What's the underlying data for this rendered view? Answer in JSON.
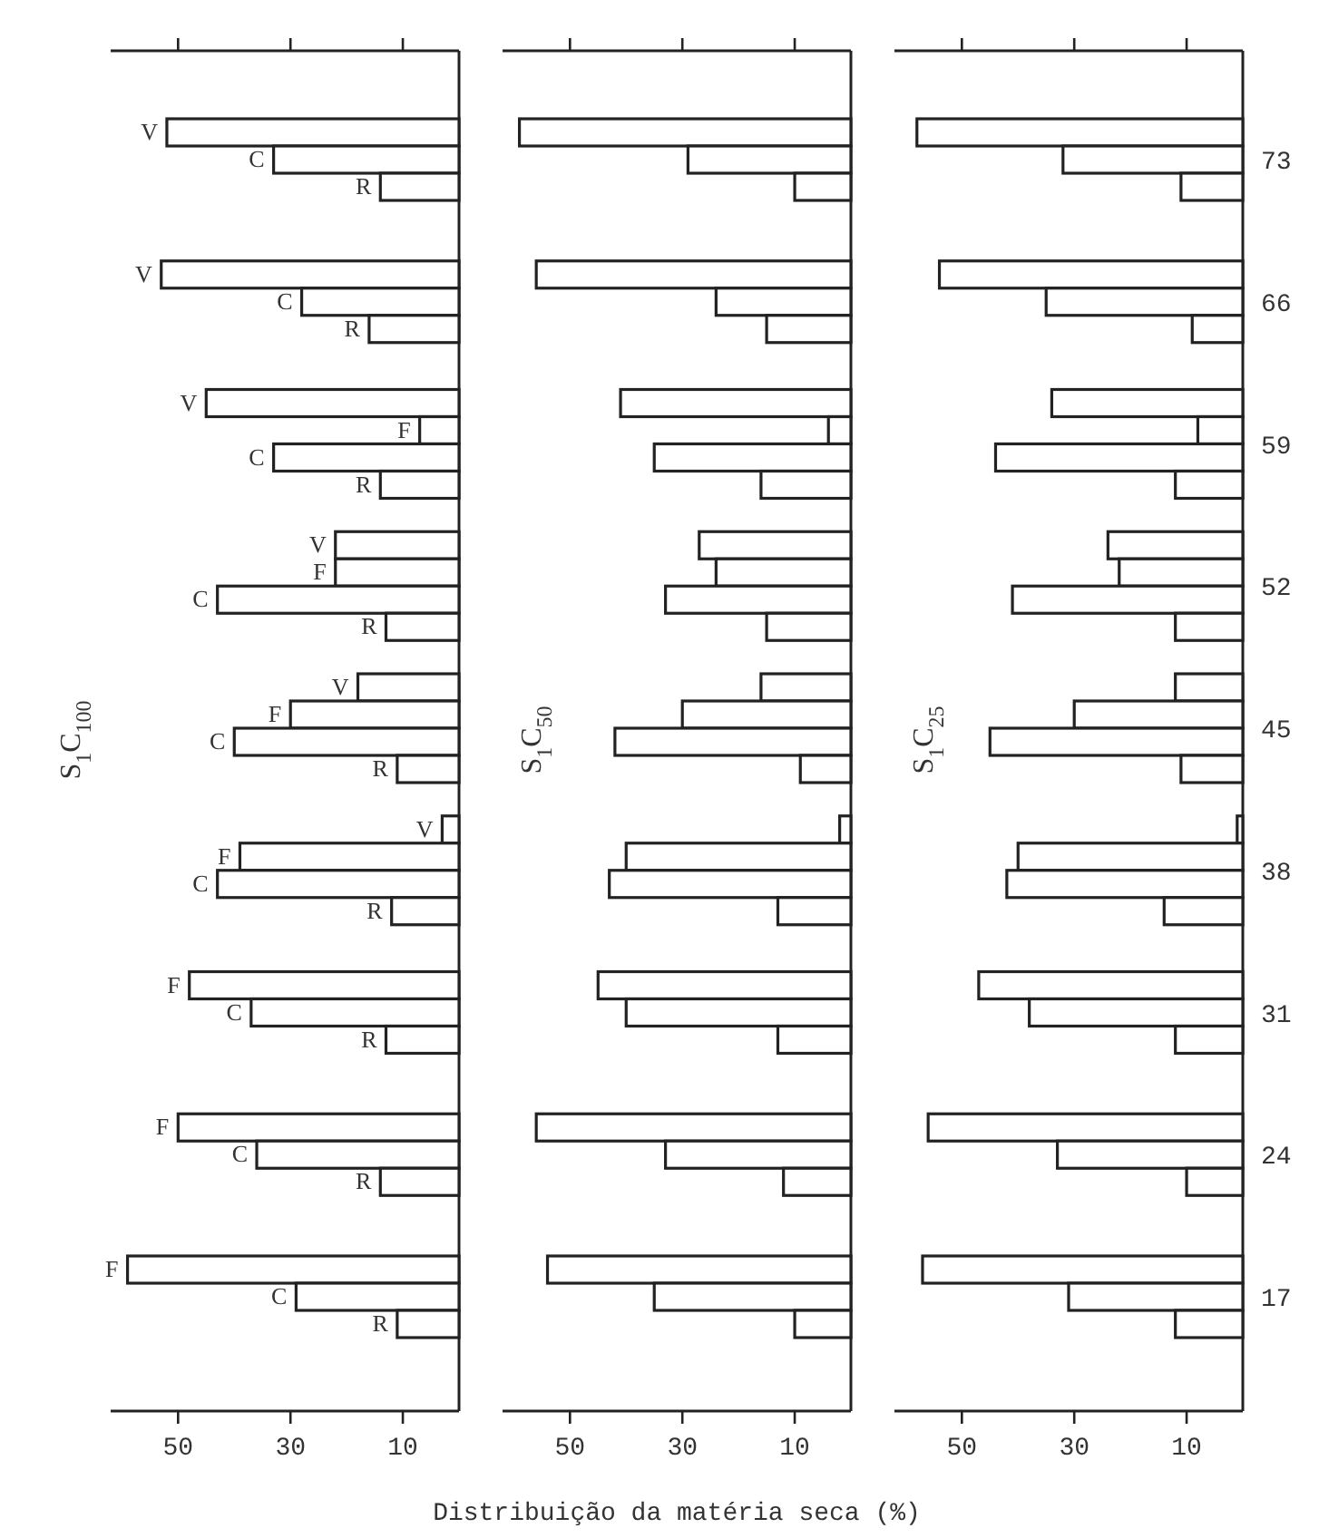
{
  "chart_data": [
    {
      "type": "bar",
      "orientation": "horizontal",
      "title": "S$_{1}$C$_{100}$",
      "categories": [
        "73",
        "66",
        "59",
        "52",
        "45",
        "38",
        "31",
        "24",
        "17"
      ],
      "xlim": [
        62,
        0
      ],
      "xticks": [
        50,
        30,
        10
      ],
      "tick_labels": "x",
      "series": [
        {
          "name": "V",
          "color": "#ffffff",
          "values": [
            52,
            53,
            45,
            22,
            18,
            3,
            null,
            null,
            null
          ]
        },
        {
          "name": "F",
          "color": "#ffffff",
          "values": [
            null,
            null,
            7,
            22,
            30,
            39,
            48,
            50,
            59
          ]
        },
        {
          "name": "C",
          "color": "#ffffff",
          "values": [
            33,
            28,
            33,
            43,
            40,
            43,
            37,
            36,
            29
          ]
        },
        {
          "name": "R",
          "color": "#ffffff",
          "values": [
            14,
            16,
            14,
            13,
            11,
            12,
            13,
            14,
            11
          ]
        }
      ]
    },
    {
      "type": "bar",
      "orientation": "horizontal",
      "title": "S$_{1}$C$_{50}$",
      "xlabel": "Distribuição da matéria seca (%)",
      "categories": [
        "73",
        "66",
        "59",
        "52",
        "45",
        "38",
        "31",
        "24",
        "17"
      ],
      "xlim": [
        62,
        0
      ],
      "xticks": [
        50,
        30,
        10
      ],
      "tick_labels": "x",
      "series": [
        {
          "color": "#ffffff",
          "values": [
            59,
            56,
            41,
            27,
            16,
            2,
            null,
            null,
            null
          ]
        },
        {
          "color": "#ffffff",
          "values": [
            null,
            null,
            4,
            24,
            30,
            40,
            45,
            56,
            54
          ]
        },
        {
          "color": "#ffffff",
          "values": [
            29,
            24,
            35,
            33,
            42,
            43,
            40,
            33,
            35
          ]
        },
        {
          "color": "#ffffff",
          "values": [
            10,
            15,
            16,
            15,
            9,
            13,
            13,
            12,
            10
          ]
        }
      ]
    },
    {
      "type": "bar",
      "orientation": "horizontal",
      "title": "S$_{1}$C$_{25}$",
      "categories": [
        "73",
        "66",
        "59",
        "52",
        "45",
        "38",
        "31",
        "24",
        "17"
      ],
      "xlim": [
        62,
        0
      ],
      "xticks": [
        50,
        30,
        10
      ],
      "series": [
        {
          "color": "#ffffff",
          "values": [
            58,
            54,
            34,
            24,
            12,
            1,
            null,
            null,
            null
          ]
        },
        {
          "color": "#ffffff",
          "values": [
            null,
            null,
            8,
            22,
            30,
            40,
            47,
            56,
            57
          ]
        },
        {
          "color": "#ffffff",
          "values": [
            32,
            35,
            44,
            41,
            45,
            42,
            38,
            33,
            31
          ]
        },
        {
          "color": "#ffffff",
          "values": [
            11,
            9,
            12,
            12,
            11,
            14,
            12,
            10,
            12
          ]
        }
      ]
    }
  ]
}
